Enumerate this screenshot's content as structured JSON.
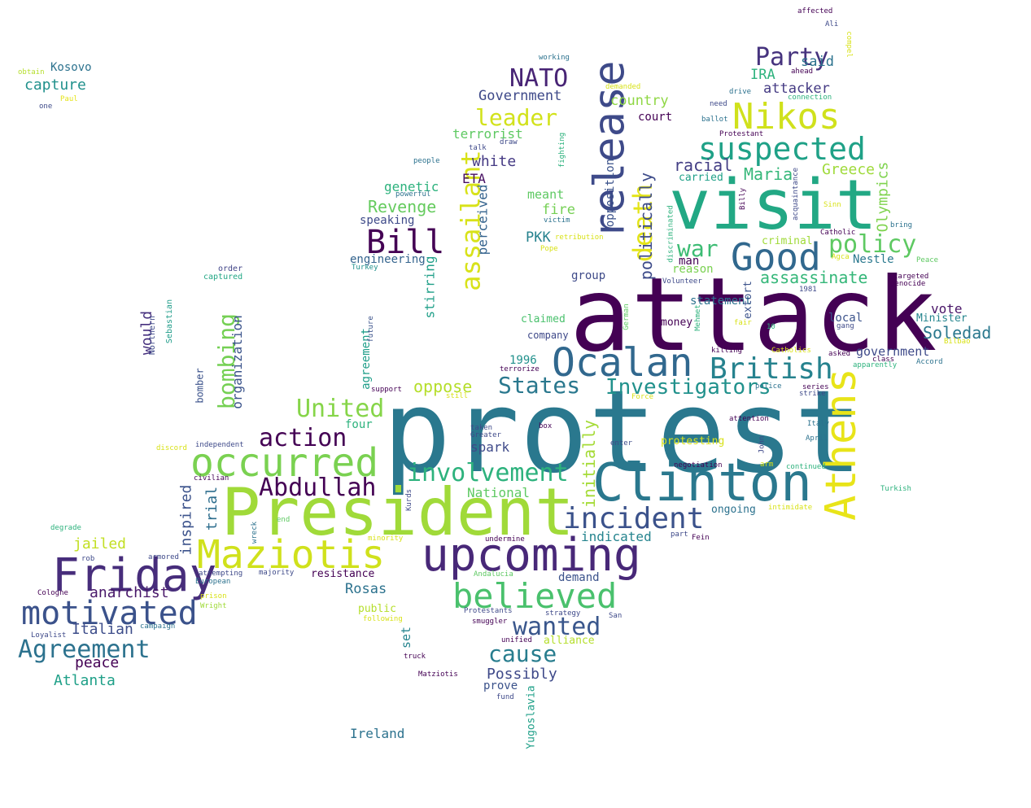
{
  "word_cloud": {
    "words": [
      {
        "text": "protest",
        "color": "#2a788e"
      },
      {
        "text": "attack",
        "color": "#440154"
      },
      {
        "text": "President",
        "color": "#a0da39"
      },
      {
        "text": "visit",
        "color": "#22a884"
      },
      {
        "text": "Clinton",
        "color": "#2a788e"
      },
      {
        "text": "upcoming",
        "color": "#482878"
      },
      {
        "text": "Friday",
        "color": "#472d7b"
      },
      {
        "text": "Maziotis",
        "color": "#d0e11c"
      },
      {
        "text": "release",
        "color": "#3e4a89"
      },
      {
        "text": "occurred",
        "color": "#7ad151"
      },
      {
        "text": "Athens",
        "color": "#e8e419"
      },
      {
        "text": "Ocalan",
        "color": "#31688e"
      },
      {
        "text": "Good",
        "color": "#31688e"
      },
      {
        "text": "believed",
        "color": "#4ac16d"
      },
      {
        "text": "motivated",
        "color": "#3b528b"
      },
      {
        "text": "Nikos",
        "color": "#d0e11c"
      },
      {
        "text": "suspected",
        "color": "#1fa187"
      },
      {
        "text": "incident",
        "color": "#3b528b"
      },
      {
        "text": "British",
        "color": "#26828e"
      },
      {
        "text": "Bill",
        "color": "#440154"
      },
      {
        "text": "Agreement",
        "color": "#2c728e"
      },
      {
        "text": "involvement",
        "color": "#2db27d"
      },
      {
        "text": "Abdullah",
        "color": "#440154"
      },
      {
        "text": "assailant",
        "color": "#d8e219"
      },
      {
        "text": "wanted",
        "color": "#39568c"
      },
      {
        "text": "NATO",
        "color": "#482475"
      },
      {
        "text": "States",
        "color": "#2a788e"
      },
      {
        "text": "Investigators",
        "color": "#21918c"
      },
      {
        "text": "policy",
        "color": "#5ec962"
      },
      {
        "text": "Party",
        "color": "#46337e"
      },
      {
        "text": "death",
        "color": "#e3e418"
      },
      {
        "text": "action",
        "color": "#440154"
      },
      {
        "text": "United",
        "color": "#86d549"
      },
      {
        "text": "bombing",
        "color": "#75d054"
      },
      {
        "text": "war",
        "color": "#3dbc74"
      },
      {
        "text": "cause",
        "color": "#287d8e"
      },
      {
        "text": "leader",
        "color": "#d2e21b"
      },
      {
        "text": "Greece",
        "color": "#9fda3a"
      },
      {
        "text": "assassinate",
        "color": "#35b779"
      },
      {
        "text": "Olympics",
        "color": "#7fd34e"
      },
      {
        "text": "Soledad",
        "color": "#2a788e"
      },
      {
        "text": "Maria",
        "color": "#35b779"
      },
      {
        "text": "racial",
        "color": "#433e85"
      },
      {
        "text": "politically",
        "color": "#3e4c8a"
      },
      {
        "text": "initially",
        "color": "#a5db36"
      },
      {
        "text": "oppose",
        "color": "#b5de2b"
      },
      {
        "text": "Revenge",
        "color": "#65cb5e"
      },
      {
        "text": "stirring",
        "color": "#1f9f88"
      },
      {
        "text": "Possibly",
        "color": "#3e4989"
      },
      {
        "text": "peace",
        "color": "#440154"
      },
      {
        "text": "Atlanta",
        "color": "#1fa088"
      },
      {
        "text": "Italian",
        "color": "#3d4d8a"
      },
      {
        "text": "anarchist",
        "color": "#481769"
      },
      {
        "text": "jailed",
        "color": "#c2df23"
      },
      {
        "text": "inspired",
        "color": "#3b528b"
      },
      {
        "text": "trial",
        "color": "#2e6e8e"
      },
      {
        "text": "organization",
        "color": "#3a538b"
      },
      {
        "text": "would",
        "color": "#46307e"
      },
      {
        "text": "capture",
        "color": "#21918c"
      },
      {
        "text": "Kosovo",
        "color": "#2c728e"
      },
      {
        "text": "obtain",
        "color": "#b5de2b"
      },
      {
        "text": "one",
        "color": "#3e4a89"
      },
      {
        "text": "Paul",
        "color": "#e5e419"
      },
      {
        "text": "Northern",
        "color": "#3e4989"
      },
      {
        "text": "Sebastian",
        "color": "#1e9c89"
      },
      {
        "text": "order",
        "color": "#414487"
      },
      {
        "text": "captured",
        "color": "#22a785"
      },
      {
        "text": "engineering",
        "color": "#33638d"
      },
      {
        "text": "Turkey",
        "color": "#21918c"
      },
      {
        "text": "speaking",
        "color": "#3e4a89"
      },
      {
        "text": "genetic",
        "color": "#2db27d"
      },
      {
        "text": "white",
        "color": "#443983"
      },
      {
        "text": "ETA",
        "color": "#471063"
      },
      {
        "text": "perceived",
        "color": "#33628d"
      },
      {
        "text": "terrorist",
        "color": "#5ec962"
      },
      {
        "text": "Government",
        "color": "#3e4989"
      },
      {
        "text": "country",
        "color": "#8fd744"
      },
      {
        "text": "court",
        "color": "#440154"
      },
      {
        "text": "attacker",
        "color": "#443a83"
      },
      {
        "text": "IRA",
        "color": "#2db27d"
      },
      {
        "text": "said",
        "color": "#2c728e"
      },
      {
        "text": "meant",
        "color": "#5ec962"
      },
      {
        "text": "fire",
        "color": "#75d054"
      },
      {
        "text": "PKK",
        "color": "#26828e"
      },
      {
        "text": "opposition",
        "color": "#3b528b"
      },
      {
        "text": "carried",
        "color": "#1fa088"
      },
      {
        "text": "criminal",
        "color": "#a0da39"
      },
      {
        "text": "man",
        "color": "#440154"
      },
      {
        "text": "reason",
        "color": "#7ad151"
      },
      {
        "text": "statement",
        "color": "#2c728e"
      },
      {
        "text": "Nestle",
        "color": "#2a788e"
      },
      {
        "text": "group",
        "color": "#3e4a89"
      },
      {
        "text": "claimed",
        "color": "#4ac16d"
      },
      {
        "text": "money",
        "color": "#440154"
      },
      {
        "text": "extort",
        "color": "#3b528b"
      },
      {
        "text": "company",
        "color": "#3e4989"
      },
      {
        "text": "1996",
        "color": "#21918c"
      },
      {
        "text": "terrorize",
        "color": "#440154"
      },
      {
        "text": "vote",
        "color": "#481467"
      },
      {
        "text": "local",
        "color": "#3b528b"
      },
      {
        "text": "Minister",
        "color": "#25858e"
      },
      {
        "text": "government",
        "color": "#3e4a89"
      },
      {
        "text": "agreement",
        "color": "#1f9e89"
      },
      {
        "text": "future",
        "color": "#3b528b"
      },
      {
        "text": "support",
        "color": "#440154"
      },
      {
        "text": "bomber",
        "color": "#3b528b"
      },
      {
        "text": "four",
        "color": "#2db27d"
      },
      {
        "text": "spark",
        "color": "#3e4989"
      },
      {
        "text": "National",
        "color": "#5ec962"
      },
      {
        "text": "indicated",
        "color": "#25848e"
      },
      {
        "text": "ongoing",
        "color": "#2c728e"
      },
      {
        "text": "demand",
        "color": "#3b528b"
      },
      {
        "text": "resistance",
        "color": "#440154"
      },
      {
        "text": "Rosas",
        "color": "#2c728e"
      },
      {
        "text": "public",
        "color": "#b5de2b"
      },
      {
        "text": "set",
        "color": "#25848e"
      },
      {
        "text": "alliance",
        "color": "#b5de2b"
      },
      {
        "text": "prove",
        "color": "#3b528b"
      },
      {
        "text": "Yugoslavia",
        "color": "#1fa088"
      },
      {
        "text": "Ireland",
        "color": "#2c728e"
      },
      {
        "text": "Matziotis",
        "color": "#440154"
      },
      {
        "text": "fund",
        "color": "#3e4989"
      },
      {
        "text": "truck",
        "color": "#440154"
      },
      {
        "text": "Kurds",
        "color": "#3e4989"
      },
      {
        "text": "wreck",
        "color": "#2c728e"
      },
      {
        "text": "end",
        "color": "#5ec962"
      },
      {
        "text": "minority",
        "color": "#d8e219"
      },
      {
        "text": "majority",
        "color": "#3e4a89"
      },
      {
        "text": "attempting",
        "color": "#3e4989"
      },
      {
        "text": "European",
        "color": "#2c728e"
      },
      {
        "text": "prison",
        "color": "#d8e219"
      },
      {
        "text": "Wright",
        "color": "#a0da39"
      },
      {
        "text": "campaign",
        "color": "#2c728e"
      },
      {
        "text": "Loyalist",
        "color": "#3e4989"
      },
      {
        "text": "Cologne",
        "color": "#440154"
      },
      {
        "text": "rob",
        "color": "#3e4989"
      },
      {
        "text": "armored",
        "color": "#3e4989"
      },
      {
        "text": "degrade",
        "color": "#2db27d"
      },
      {
        "text": "discord",
        "color": "#d8e219"
      },
      {
        "text": "independent",
        "color": "#3e4989"
      },
      {
        "text": "civilian",
        "color": "#440154"
      },
      {
        "text": "still",
        "color": "#d8e219"
      },
      {
        "text": "taken",
        "color": "#3e4989"
      },
      {
        "text": "Greater",
        "color": "#3e4989"
      },
      {
        "text": "box",
        "color": "#440154"
      },
      {
        "text": "protesting",
        "color": "#d8e219"
      },
      {
        "text": "enter",
        "color": "#3e4a89"
      },
      {
        "text": "negotiation",
        "color": "#440154"
      },
      {
        "text": "undermine",
        "color": "#440154"
      },
      {
        "text": "part",
        "color": "#3e4989"
      },
      {
        "text": "Fein",
        "color": "#440154"
      },
      {
        "text": "Andalucia",
        "color": "#5ec962"
      },
      {
        "text": "Protestants",
        "color": "#3e4989"
      },
      {
        "text": "strategy",
        "color": "#3e4989"
      },
      {
        "text": "smuggler",
        "color": "#440154"
      },
      {
        "text": "San",
        "color": "#3e4989"
      },
      {
        "text": "unified",
        "color": "#440154"
      },
      {
        "text": "following",
        "color": "#d8e219"
      },
      {
        "text": "Force",
        "color": "#d8e219"
      },
      {
        "text": "attention",
        "color": "#440154"
      },
      {
        "text": "John",
        "color": "#3e4989"
      },
      {
        "text": "arm",
        "color": "#d8e219"
      },
      {
        "text": "continued",
        "color": "#2db27d"
      },
      {
        "text": "intimidate",
        "color": "#d8e219"
      },
      {
        "text": "Turkish",
        "color": "#2db27d"
      },
      {
        "text": "Italy",
        "color": "#2c728e"
      },
      {
        "text": "April",
        "color": "#2c728e"
      },
      {
        "text": "series",
        "color": "#440154"
      },
      {
        "text": "strike",
        "color": "#3e4989"
      },
      {
        "text": "police",
        "color": "#2c728e"
      },
      {
        "text": "Catholics",
        "color": "#d8e219"
      },
      {
        "text": "killing",
        "color": "#440154"
      },
      {
        "text": "fair",
        "color": "#d8e219"
      },
      {
        "text": "10",
        "color": "#2db27d"
      },
      {
        "text": "German",
        "color": "#5ec962"
      },
      {
        "text": "Mehmet",
        "color": "#2db27d"
      },
      {
        "text": "Volunteer",
        "color": "#3e4989"
      },
      {
        "text": "1981",
        "color": "#3e4989"
      },
      {
        "text": "asked",
        "color": "#440154"
      },
      {
        "text": "class",
        "color": "#440154"
      },
      {
        "text": "apparently",
        "color": "#2db27d"
      },
      {
        "text": "Accord",
        "color": "#2c728e"
      },
      {
        "text": "Bilbao",
        "color": "#d8e219"
      },
      {
        "text": "gang",
        "color": "#3e4989"
      },
      {
        "text": "genocide",
        "color": "#440154"
      },
      {
        "text": "targeted",
        "color": "#440154"
      },
      {
        "text": "Peace",
        "color": "#5ec962"
      },
      {
        "text": "Agca",
        "color": "#d8e219"
      },
      {
        "text": "Catholic",
        "color": "#440154"
      },
      {
        "text": "bring",
        "color": "#2c728e"
      },
      {
        "text": "Sinn",
        "color": "#d8e219"
      },
      {
        "text": "acquaintance",
        "color": "#3e4989"
      },
      {
        "text": "Billy",
        "color": "#440154"
      },
      {
        "text": "discriminated",
        "color": "#2db27d"
      },
      {
        "text": "retribution",
        "color": "#d8e219"
      },
      {
        "text": "Pope",
        "color": "#d8e219"
      },
      {
        "text": "victim",
        "color": "#2c728e"
      },
      {
        "text": "fighting",
        "color": "#2db27d"
      },
      {
        "text": "draw",
        "color": "#3e4989"
      },
      {
        "text": "talk",
        "color": "#3e4989"
      },
      {
        "text": "people",
        "color": "#2c728e"
      },
      {
        "text": "powerful",
        "color": "#2c728e"
      },
      {
        "text": "working",
        "color": "#2c728e"
      },
      {
        "text": "demanded",
        "color": "#d8e219"
      },
      {
        "text": "drive",
        "color": "#2c728e"
      },
      {
        "text": "need",
        "color": "#3e4989"
      },
      {
        "text": "ballot",
        "color": "#2c728e"
      },
      {
        "text": "Protestant",
        "color": "#440154"
      },
      {
        "text": "connection",
        "color": "#2db27d"
      },
      {
        "text": "ahead",
        "color": "#440154"
      },
      {
        "text": "compel",
        "color": "#d8e219"
      },
      {
        "text": "Ali",
        "color": "#3e4989"
      },
      {
        "text": "affected",
        "color": "#440154"
      }
    ]
  }
}
